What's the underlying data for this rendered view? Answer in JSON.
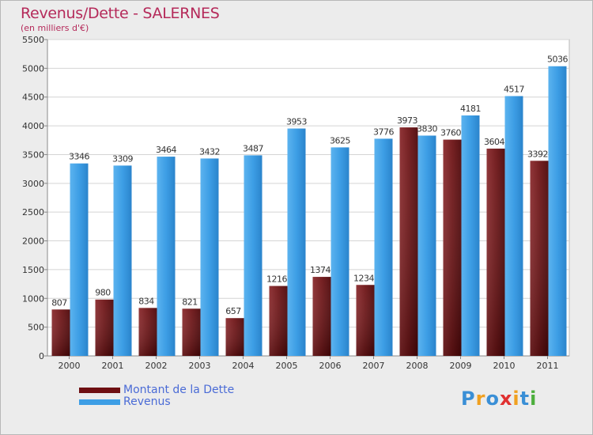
{
  "title": "Revenus/Dette - SALERNES",
  "subtitle": "(en milliers d'€)",
  "logo": {
    "text": "Proxiti",
    "letters": [
      "P",
      "r",
      "o",
      "x",
      "i",
      "t",
      "i"
    ],
    "colors": [
      "#3a8fd6",
      "#f0a020",
      "#3a8fd6",
      "#e03030",
      "#f0a020",
      "#3a8fd6",
      "#4cae3c"
    ]
  },
  "colors": {
    "debt": "#6e0f12",
    "revenue": "#3d9ee5"
  },
  "chart_data": {
    "type": "bar",
    "categories": [
      "2000",
      "2001",
      "2002",
      "2003",
      "2004",
      "2005",
      "2006",
      "2007",
      "2008",
      "2009",
      "2010",
      "2011"
    ],
    "series": [
      {
        "name": "Montant de la Dette",
        "values": [
          807,
          980,
          834,
          821,
          657,
          1216,
          1374,
          1234,
          3973,
          3760,
          3604,
          3392
        ]
      },
      {
        "name": "Revenus",
        "values": [
          3346,
          3309,
          3464,
          3432,
          3487,
          3953,
          3625,
          3776,
          3830,
          4181,
          4517,
          5036
        ]
      }
    ],
    "yticks": [
      0,
      500,
      1000,
      1500,
      2000,
      2500,
      3000,
      3500,
      4000,
      4500,
      5000,
      5500
    ],
    "ylim": [
      0,
      5500
    ],
    "grid": true,
    "legend_placement": "bottom-left",
    "title": "Revenus/Dette - SALERNES",
    "ylabel": "(en milliers d'€)"
  }
}
